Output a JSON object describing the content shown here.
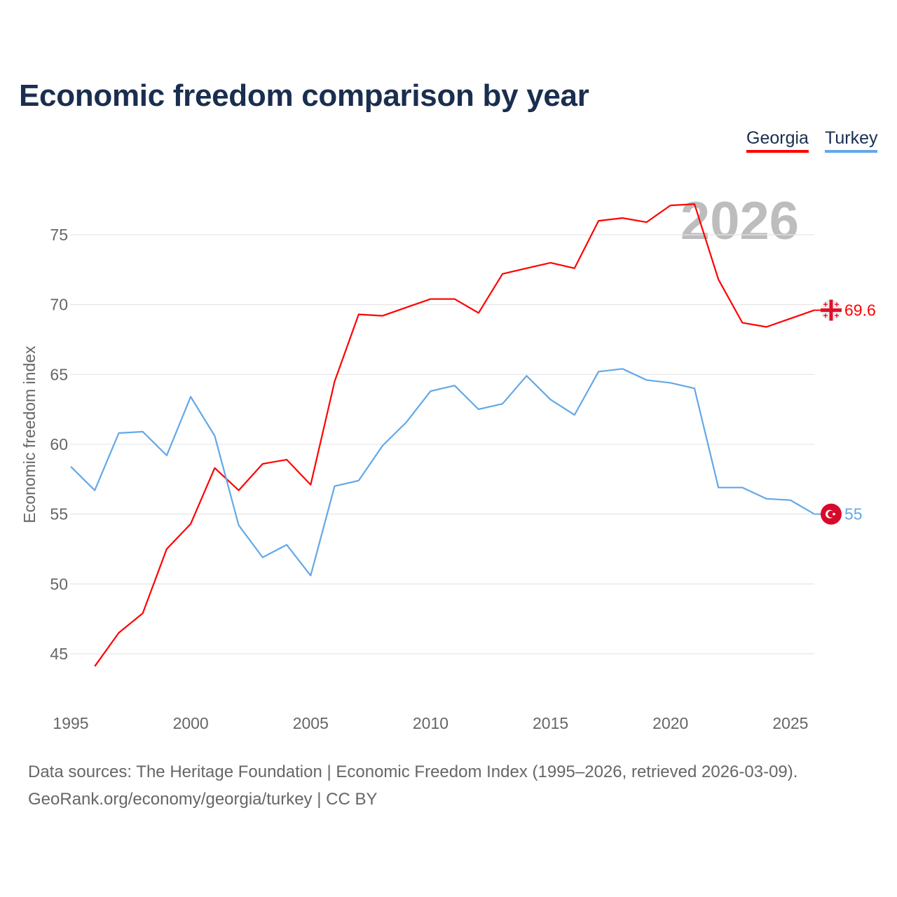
{
  "chart_data": {
    "type": "line",
    "title": "Economic freedom comparison by year",
    "xlabel": "",
    "ylabel": "Economic freedom index",
    "xlim": [
      1995,
      2026
    ],
    "ylim": [
      41,
      80
    ],
    "xticks": [
      1995,
      2000,
      2005,
      2010,
      2015,
      2020,
      2025
    ],
    "yticks": [
      45,
      50,
      55,
      60,
      65,
      70,
      75
    ],
    "grid": true,
    "legend_placement": "top-right",
    "year_watermark": "2026",
    "series": [
      {
        "name": "Georgia",
        "color": "#ff0000",
        "end_label": "69.6",
        "flag": "georgia-flag",
        "x": [
          1996,
          1997,
          1998,
          1999,
          2000,
          2001,
          2002,
          2003,
          2004,
          2005,
          2006,
          2007,
          2008,
          2009,
          2010,
          2011,
          2012,
          2013,
          2014,
          2015,
          2016,
          2017,
          2018,
          2019,
          2020,
          2021,
          2022,
          2023,
          2024,
          2025,
          2026
        ],
        "values": [
          44.1,
          46.5,
          47.9,
          52.5,
          54.3,
          58.3,
          56.7,
          58.6,
          58.9,
          57.1,
          64.5,
          69.3,
          69.2,
          69.8,
          70.4,
          70.4,
          69.4,
          72.2,
          72.6,
          73.0,
          72.6,
          76.0,
          76.2,
          75.9,
          77.1,
          77.2,
          71.8,
          68.7,
          68.4,
          69.0,
          69.6
        ]
      },
      {
        "name": "Turkey",
        "color": "#62a8e8",
        "end_label": "55",
        "flag": "turkey-flag",
        "x": [
          1995,
          1996,
          1997,
          1998,
          1999,
          2000,
          2001,
          2002,
          2003,
          2004,
          2005,
          2006,
          2007,
          2008,
          2009,
          2010,
          2011,
          2012,
          2013,
          2014,
          2015,
          2016,
          2017,
          2018,
          2019,
          2020,
          2021,
          2022,
          2023,
          2024,
          2025,
          2026
        ],
        "values": [
          58.4,
          56.7,
          60.8,
          60.9,
          59.2,
          63.4,
          60.6,
          54.2,
          51.9,
          52.8,
          50.6,
          57.0,
          57.4,
          59.9,
          61.6,
          63.8,
          64.2,
          62.5,
          62.9,
          64.9,
          63.2,
          62.1,
          65.2,
          65.4,
          64.6,
          64.4,
          64.0,
          56.9,
          56.9,
          56.1,
          56.0,
          55.0
        ]
      }
    ]
  },
  "footer": {
    "line1": "Data sources: The Heritage Foundation | Economic Freedom Index (1995–2026, retrieved 2026-03-09).",
    "line2": "GeoRank.org/economy/georgia/turkey | CC BY"
  }
}
